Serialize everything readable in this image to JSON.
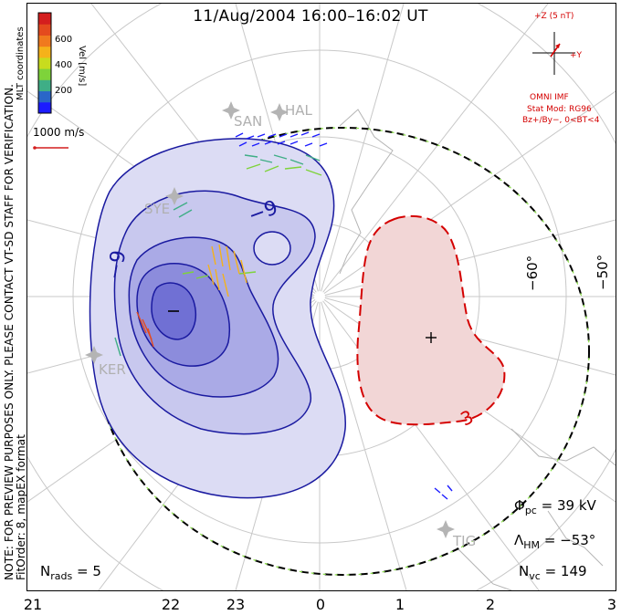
{
  "title": "11/Aug/2004  16:00–16:02  UT",
  "x_ticks": [
    "21",
    "22",
    "23",
    "0",
    "1",
    "2",
    "3"
  ],
  "note_line1": "NOTE: FOR PREVIEW PURPOSES ONLY. PLEASE CONTACT VT-SD STAFF FOR VERIFICATION.",
  "note_line2": "FitOrder: 8, mapEX format",
  "coords_label": "MLT coordinates",
  "colorbar": {
    "title": "Vel [m/s]",
    "ticks": [
      "600",
      "400",
      "200"
    ],
    "colors": [
      "#1c1cff",
      "#2a66c8",
      "#3fae86",
      "#7ed33a",
      "#c8dc1e",
      "#f5b21a",
      "#f07a1e",
      "#e44a1e",
      "#d41e1e"
    ]
  },
  "ref_vector": "1000 m/s",
  "imf": {
    "bz_label": "+Z (5 nT)",
    "by_label": "+Y",
    "source": "OMNI IMF",
    "stat_mod": "Stat Mod: RG96",
    "condition": "Bz+/By−, 0<BT<4"
  },
  "lat_labels": [
    "−60°",
    "−50°"
  ],
  "sites": [
    "SAN",
    "HAL",
    "SYE",
    "KER",
    "TIG"
  ],
  "contour_labels": [
    "−9",
    "−9",
    "3"
  ],
  "potential_markers": [
    "−",
    "+"
  ],
  "stats": {
    "phi_label": "Φ",
    "phi_sub": "pc",
    "phi_value": "= 39 kV",
    "lambda_label": "Λ",
    "lambda_sub": "HM",
    "lambda_value": "= −53°",
    "nvc_label": "N",
    "nvc_sub": "vc",
    "nvc_value": "= 149",
    "nrads_label": "N",
    "nrads_sub": "rads",
    "nrads_value": "= 5"
  },
  "colors": {
    "negative_fill": "#c8c8f0",
    "positive_fill": "#f0d2d2",
    "negative_line": "#1a1aa0",
    "positive_line": "#d40000"
  }
}
